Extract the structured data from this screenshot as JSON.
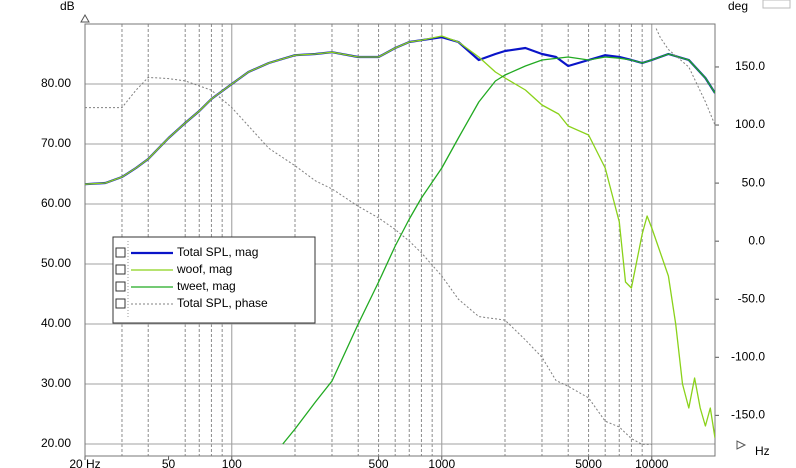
{
  "chart_data": {
    "type": "line",
    "ylabel": "dB",
    "y2label": "deg",
    "xlabel": "Hz",
    "xscale": "log",
    "xlim": [
      20,
      20000
    ],
    "xticks": [
      {
        "value": 20,
        "label": "20 Hz"
      },
      50,
      100,
      500,
      1000,
      5000,
      10000
    ],
    "x_gridlines": [
      30,
      40,
      60,
      70,
      80,
      90,
      100,
      200,
      300,
      400,
      500,
      600,
      700,
      800,
      900,
      1000,
      2000,
      3000,
      4000,
      5000,
      6000,
      7000,
      8000,
      9000,
      10000
    ],
    "ylim": [
      18,
      90
    ],
    "yticks": [
      {
        "value": 20,
        "label": "20.00"
      },
      {
        "value": 30,
        "label": "30.00"
      },
      {
        "value": 40,
        "label": "40.00"
      },
      {
        "value": 50,
        "label": "50.00"
      },
      {
        "value": 60,
        "label": "60.00"
      },
      {
        "value": 70,
        "label": "70.00"
      },
      {
        "value": 80,
        "label": "80.00"
      }
    ],
    "y2lim": [
      -185,
      187
    ],
    "y2ticks": [
      {
        "value": -150,
        "label": "-150.0"
      },
      {
        "value": -100,
        "label": "-100.0"
      },
      {
        "value": -50,
        "label": "-50.0"
      },
      {
        "value": 0,
        "label": "0.0"
      },
      {
        "value": 50,
        "label": "50.0"
      },
      {
        "value": 100,
        "label": "100.0"
      },
      {
        "value": 150,
        "label": "150.0"
      }
    ],
    "grid": true,
    "legend": "center-left",
    "series": [
      {
        "name": "Total SPL, mag",
        "color": "#0a14c8",
        "width": 2.2,
        "x": [
          20,
          25,
          30,
          35,
          40,
          50,
          60,
          70,
          80,
          100,
          120,
          150,
          200,
          250,
          300,
          400,
          500,
          600,
          700,
          800,
          1000,
          1200,
          1500,
          1800,
          2000,
          2500,
          3000,
          3500,
          4000,
          5000,
          6000,
          7000,
          8000,
          9000,
          10000,
          12000,
          15000,
          18000,
          20000
        ],
        "values": [
          63.3,
          63.5,
          64.5,
          66,
          67.5,
          71,
          73.5,
          75.5,
          77.5,
          80,
          82,
          83.5,
          84.8,
          85,
          85.3,
          84.5,
          84.5,
          86,
          87,
          87.3,
          87.8,
          87,
          84,
          85,
          85.5,
          86,
          85,
          84.5,
          83,
          84,
          84.8,
          84.5,
          84,
          83.5,
          84,
          85,
          84,
          81,
          78.5
        ]
      },
      {
        "name": "woof, mag",
        "color": "#8ad21a",
        "width": 1.3,
        "x": [
          20,
          25,
          30,
          35,
          40,
          50,
          60,
          70,
          80,
          100,
          120,
          150,
          200,
          250,
          300,
          400,
          500,
          600,
          700,
          800,
          1000,
          1200,
          1500,
          1800,
          2000,
          2500,
          3000,
          3600,
          4000,
          5000,
          6000,
          7000,
          7500,
          8000,
          9000,
          9500,
          10000,
          12000,
          13000,
          14000,
          15000,
          16000,
          17000,
          18000,
          19000,
          20000
        ],
        "values": [
          63.3,
          63.5,
          64.5,
          66,
          67.5,
          71,
          73.5,
          75.5,
          77.5,
          80,
          82,
          83.5,
          84.8,
          85,
          85.3,
          84.5,
          84.5,
          86,
          87,
          87.3,
          88,
          87,
          84.5,
          82,
          81,
          79,
          76.5,
          75,
          73,
          71.5,
          66,
          57,
          47,
          46,
          55,
          58,
          56,
          48,
          40,
          30,
          26,
          31,
          26,
          23,
          26,
          21
        ]
      },
      {
        "name": "tweet, mag",
        "color": "#22aa22",
        "width": 1.3,
        "x": [
          175,
          200,
          250,
          300,
          400,
          500,
          600,
          700,
          800,
          1000,
          1200,
          1500,
          1800,
          2000,
          2500,
          3000,
          4000,
          5000,
          6000,
          7000,
          8000,
          9000,
          10000,
          12000,
          15000,
          18000,
          20000
        ],
        "values": [
          20,
          22.5,
          27,
          30.5,
          40,
          47,
          53,
          57.5,
          61,
          66,
          71,
          77,
          80.5,
          81.5,
          83,
          84,
          84.5,
          84,
          84.5,
          84.3,
          84,
          83.5,
          84,
          85,
          84,
          81,
          78.5
        ]
      },
      {
        "name": "Total SPL, phase",
        "color": "#808080",
        "width": 1,
        "dash": "2 2",
        "axis": "y2",
        "x": [
          20,
          30,
          35,
          40,
          50,
          60,
          80,
          100,
          150,
          200,
          250,
          300,
          400,
          500,
          600,
          700,
          800,
          1000,
          1200,
          1500,
          2000,
          2500,
          3000,
          3500,
          4000,
          5000,
          6000,
          7000,
          8000,
          9000,
          10000,
          10200,
          10500,
          11000,
          12000,
          15000,
          18000,
          20000
        ],
        "values": [
          115,
          115,
          130,
          141,
          140,
          138,
          130,
          115,
          80,
          65,
          52,
          45,
          30,
          20,
          10,
          0,
          -10,
          -30,
          -50,
          -65,
          -68,
          -85,
          -100,
          -120,
          -125,
          -135,
          -155,
          -160,
          -170,
          -175,
          -175,
          null,
          183,
          175,
          165,
          150,
          120,
          100
        ]
      }
    ]
  }
}
